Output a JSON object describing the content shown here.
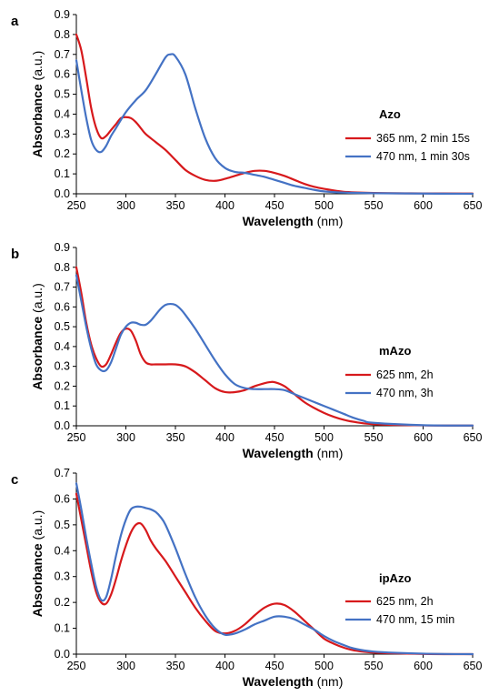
{
  "figure": {
    "x_axis_label_bold": "Wavelength",
    "x_axis_label_unit": " (nm)",
    "y_axis_label": "Absorbance (a.u.)"
  },
  "chart_data": [
    {
      "type": "line",
      "panel_label": "a",
      "legend_title": "Azo",
      "xlabel": "Wavelength (nm)",
      "ylabel": "Absorbance (a.u.)",
      "xlim": [
        250,
        650
      ],
      "ylim": [
        0,
        0.9
      ],
      "xticks": [
        "250",
        "300",
        "350",
        "400",
        "450",
        "500",
        "550",
        "600",
        "650"
      ],
      "yticks": [
        "0.0",
        "0.1",
        "0.2",
        "0.3",
        "0.4",
        "0.5",
        "0.6",
        "0.7",
        "0.8",
        "0.9"
      ],
      "grid": false,
      "legend_position": "right",
      "series": [
        {
          "name": "365 nm, 2 min 15s",
          "color": "#d7191c",
          "x": [
            250,
            255,
            260,
            265,
            270,
            275,
            280,
            285,
            290,
            295,
            300,
            305,
            310,
            315,
            320,
            330,
            340,
            350,
            360,
            370,
            380,
            390,
            400,
            410,
            420,
            430,
            440,
            450,
            460,
            470,
            480,
            490,
            500,
            520,
            550,
            600,
            650
          ],
          "y": [
            0.8,
            0.72,
            0.58,
            0.43,
            0.33,
            0.28,
            0.29,
            0.32,
            0.35,
            0.38,
            0.385,
            0.38,
            0.36,
            0.33,
            0.3,
            0.26,
            0.22,
            0.17,
            0.12,
            0.09,
            0.07,
            0.065,
            0.075,
            0.09,
            0.105,
            0.115,
            0.115,
            0.105,
            0.09,
            0.07,
            0.05,
            0.035,
            0.025,
            0.01,
            0.004,
            0.002,
            0.001
          ]
        },
        {
          "name": "470 nm, 1 min 30s",
          "color": "#4472c4",
          "x": [
            250,
            255,
            260,
            265,
            270,
            275,
            280,
            285,
            290,
            300,
            310,
            320,
            330,
            340,
            345,
            350,
            360,
            370,
            380,
            390,
            400,
            410,
            420,
            430,
            440,
            450,
            460,
            470,
            480,
            490,
            500,
            520,
            550,
            600,
            650
          ],
          "y": [
            0.67,
            0.52,
            0.38,
            0.27,
            0.22,
            0.21,
            0.24,
            0.29,
            0.33,
            0.41,
            0.47,
            0.52,
            0.6,
            0.685,
            0.7,
            0.69,
            0.6,
            0.43,
            0.28,
            0.18,
            0.13,
            0.11,
            0.105,
            0.095,
            0.085,
            0.07,
            0.055,
            0.04,
            0.03,
            0.02,
            0.012,
            0.006,
            0.003,
            0.001,
            0.0
          ]
        }
      ]
    },
    {
      "type": "line",
      "panel_label": "b",
      "legend_title": "mAzo",
      "xlabel": "Wavelength (nm)",
      "ylabel": "Absorbance (a.u.)",
      "xlim": [
        250,
        650
      ],
      "ylim": [
        0,
        0.9
      ],
      "xticks": [
        "250",
        "300",
        "350",
        "400",
        "450",
        "500",
        "550",
        "600",
        "650"
      ],
      "yticks": [
        "0.0",
        "0.1",
        "0.2",
        "0.3",
        "0.4",
        "0.5",
        "0.6",
        "0.7",
        "0.8",
        "0.9"
      ],
      "grid": false,
      "legend_position": "right",
      "series": [
        {
          "name": "625 nm, 2h",
          "color": "#d7191c",
          "x": [
            250,
            255,
            260,
            265,
            270,
            275,
            280,
            285,
            290,
            295,
            300,
            305,
            310,
            315,
            320,
            325,
            330,
            340,
            350,
            360,
            370,
            380,
            390,
            400,
            410,
            420,
            430,
            440,
            445,
            450,
            460,
            470,
            480,
            490,
            500,
            510,
            520,
            530,
            550,
            600,
            650
          ],
          "y": [
            0.8,
            0.67,
            0.52,
            0.41,
            0.34,
            0.3,
            0.31,
            0.36,
            0.42,
            0.47,
            0.49,
            0.48,
            0.43,
            0.36,
            0.32,
            0.31,
            0.31,
            0.31,
            0.31,
            0.3,
            0.27,
            0.23,
            0.19,
            0.17,
            0.17,
            0.18,
            0.2,
            0.215,
            0.22,
            0.22,
            0.2,
            0.16,
            0.12,
            0.09,
            0.065,
            0.045,
            0.03,
            0.02,
            0.008,
            0.002,
            0.001
          ]
        },
        {
          "name": "470 nm, 3h",
          "color": "#4472c4",
          "x": [
            250,
            255,
            260,
            265,
            270,
            275,
            280,
            285,
            290,
            295,
            300,
            305,
            310,
            315,
            320,
            325,
            330,
            335,
            340,
            345,
            350,
            355,
            360,
            370,
            380,
            390,
            400,
            410,
            420,
            430,
            440,
            450,
            460,
            470,
            480,
            490,
            500,
            510,
            520,
            530,
            540,
            550,
            600,
            650
          ],
          "y": [
            0.76,
            0.63,
            0.5,
            0.39,
            0.31,
            0.28,
            0.28,
            0.32,
            0.39,
            0.46,
            0.5,
            0.52,
            0.52,
            0.51,
            0.51,
            0.53,
            0.56,
            0.59,
            0.61,
            0.615,
            0.61,
            0.59,
            0.56,
            0.49,
            0.41,
            0.33,
            0.26,
            0.21,
            0.19,
            0.185,
            0.185,
            0.185,
            0.18,
            0.16,
            0.14,
            0.12,
            0.1,
            0.08,
            0.06,
            0.04,
            0.025,
            0.015,
            0.003,
            0.001
          ]
        }
      ]
    },
    {
      "type": "line",
      "panel_label": "c",
      "legend_title": "ipAzo",
      "xlabel": "Wavelength (nm)",
      "ylabel": "Absorbance (a.u.)",
      "xlim": [
        250,
        650
      ],
      "ylim": [
        0,
        0.7
      ],
      "xticks": [
        "250",
        "300",
        "350",
        "400",
        "450",
        "500",
        "550",
        "600",
        "650"
      ],
      "yticks": [
        "0.0",
        "0.1",
        "0.2",
        "0.3",
        "0.4",
        "0.5",
        "0.6",
        "0.7"
      ],
      "grid": false,
      "legend_position": "right",
      "series": [
        {
          "name": "625 nm, 2h",
          "color": "#d7191c",
          "x": [
            250,
            255,
            260,
            265,
            270,
            275,
            280,
            285,
            290,
            295,
            300,
            305,
            310,
            315,
            320,
            325,
            330,
            340,
            350,
            360,
            370,
            380,
            390,
            400,
            410,
            420,
            430,
            440,
            450,
            460,
            470,
            480,
            490,
            500,
            510,
            520,
            530,
            550,
            600,
            650
          ],
          "y": [
            0.62,
            0.52,
            0.42,
            0.32,
            0.24,
            0.2,
            0.195,
            0.23,
            0.29,
            0.36,
            0.42,
            0.47,
            0.5,
            0.505,
            0.48,
            0.44,
            0.41,
            0.36,
            0.3,
            0.24,
            0.18,
            0.13,
            0.09,
            0.08,
            0.09,
            0.115,
            0.15,
            0.18,
            0.195,
            0.19,
            0.165,
            0.13,
            0.095,
            0.06,
            0.04,
            0.025,
            0.015,
            0.006,
            0.001,
            0.0
          ]
        },
        {
          "name": "470 nm, 15 min",
          "color": "#4472c4",
          "x": [
            250,
            255,
            260,
            265,
            270,
            275,
            280,
            285,
            290,
            295,
            300,
            305,
            310,
            315,
            320,
            325,
            330,
            335,
            340,
            350,
            360,
            370,
            380,
            390,
            400,
            410,
            420,
            430,
            440,
            450,
            460,
            470,
            480,
            490,
            500,
            510,
            520,
            530,
            550,
            600,
            650
          ],
          "y": [
            0.66,
            0.56,
            0.45,
            0.35,
            0.26,
            0.21,
            0.22,
            0.29,
            0.38,
            0.46,
            0.52,
            0.56,
            0.57,
            0.57,
            0.565,
            0.56,
            0.55,
            0.53,
            0.5,
            0.41,
            0.31,
            0.22,
            0.15,
            0.1,
            0.075,
            0.08,
            0.095,
            0.115,
            0.13,
            0.145,
            0.145,
            0.135,
            0.115,
            0.095,
            0.07,
            0.05,
            0.035,
            0.022,
            0.01,
            0.002,
            0.0
          ]
        }
      ]
    }
  ]
}
